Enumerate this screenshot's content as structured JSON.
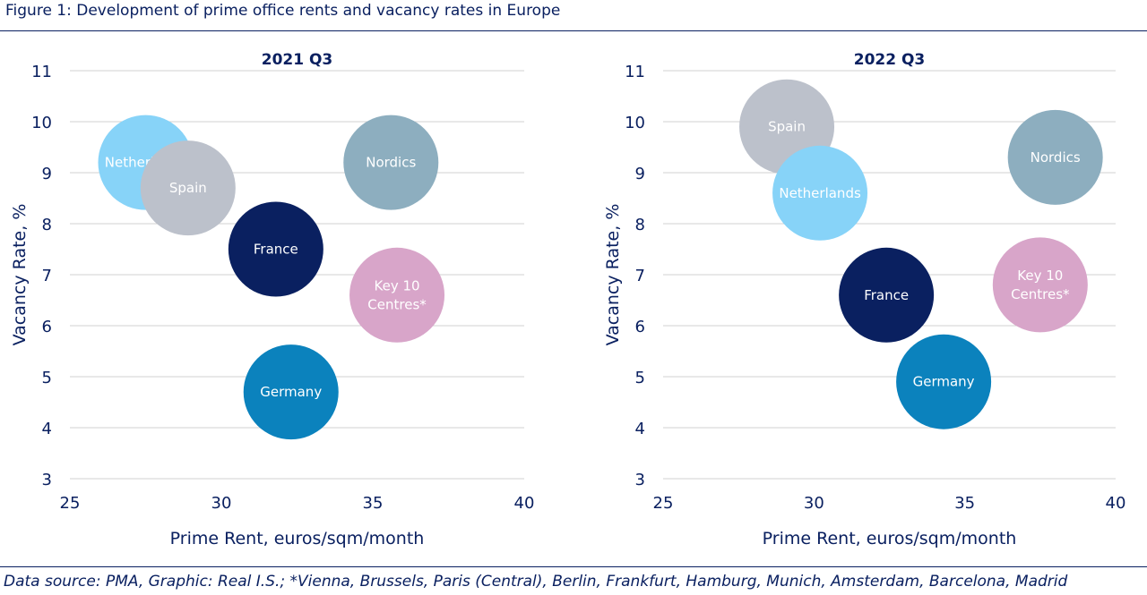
{
  "figure_title": "Figure 1: Development of prime office rents and vacancy rates in Europe",
  "source_note": "Data source: PMA, Graphic: Real I.S.; *Vienna, Brussels, Paris (Central), Berlin, Frankfurt, Hamburg, Munich, Amsterdam, Barcelona, Madrid",
  "colors": {
    "text": "#0a2060",
    "Netherlands": "#87d3f8",
    "Spain": "#bcc1cb",
    "France": "#0a2060",
    "Nordics": "#8daebf",
    "Key 10 Centres*": "#d8a5c9",
    "Germany": "#0b82bd"
  },
  "chart_data": [
    {
      "type": "bubble",
      "title": "2021 Q3",
      "xlabel": "Prime Rent, euros/sqm/month",
      "ylabel": "Vacancy Rate, %",
      "xlim": [
        25,
        40
      ],
      "ylim": [
        3,
        11
      ],
      "xticks": [
        25,
        30,
        35,
        40
      ],
      "yticks": [
        3,
        4,
        5,
        6,
        7,
        8,
        9,
        10,
        11
      ],
      "grid": "horizontal",
      "points": [
        {
          "name": "Netherlands",
          "label": [
            "Netherlands"
          ],
          "x": 27.5,
          "y": 9.2
        },
        {
          "name": "Spain",
          "label": [
            "Spain"
          ],
          "x": 28.9,
          "y": 8.7
        },
        {
          "name": "France",
          "label": [
            "France"
          ],
          "x": 31.8,
          "y": 7.5
        },
        {
          "name": "Nordics",
          "label": [
            "Nordics"
          ],
          "x": 35.6,
          "y": 9.2
        },
        {
          "name": "Key 10 Centres*",
          "label": [
            "Key 10",
            "Centres*"
          ],
          "x": 35.8,
          "y": 6.6
        },
        {
          "name": "Germany",
          "label": [
            "Germany"
          ],
          "x": 32.3,
          "y": 4.7
        }
      ]
    },
    {
      "type": "bubble",
      "title": "2022 Q3",
      "xlabel": "Prime Rent, euros/sqm/month",
      "ylabel": "Vacancy Rate, %",
      "xlim": [
        25,
        40
      ],
      "ylim": [
        3,
        11
      ],
      "xticks": [
        25,
        30,
        35,
        40
      ],
      "yticks": [
        3,
        4,
        5,
        6,
        7,
        8,
        9,
        10,
        11
      ],
      "grid": "horizontal",
      "points": [
        {
          "name": "Spain",
          "label": [
            "Spain"
          ],
          "x": 29.1,
          "y": 9.9
        },
        {
          "name": "Netherlands",
          "label": [
            "Netherlands"
          ],
          "x": 30.2,
          "y": 8.6
        },
        {
          "name": "Nordics",
          "label": [
            "Nordics"
          ],
          "x": 38.0,
          "y": 9.3
        },
        {
          "name": "France",
          "label": [
            "France"
          ],
          "x": 32.4,
          "y": 6.6
        },
        {
          "name": "Key 10 Centres*",
          "label": [
            "Key 10",
            "Centres*"
          ],
          "x": 37.5,
          "y": 6.8
        },
        {
          "name": "Germany",
          "label": [
            "Germany"
          ],
          "x": 34.3,
          "y": 4.9
        }
      ]
    }
  ]
}
